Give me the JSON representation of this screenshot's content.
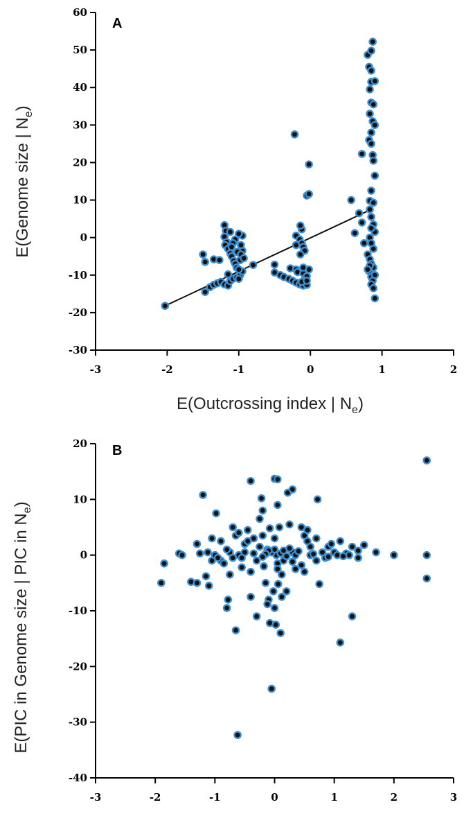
{
  "chart_data": [
    {
      "type": "scatter",
      "panel_label": "A",
      "xlabel_main": "E(Outcrossing index | N",
      "xlabel_sub": "e",
      "xlabel_end": ")",
      "ylabel_main": "E(Genome size | N",
      "ylabel_sub": "e",
      "ylabel_end": ")",
      "xlim": [
        -3,
        2
      ],
      "ylim": [
        -30,
        60
      ],
      "x_ticks": [
        "-3",
        "-2",
        "-1",
        "0",
        "1",
        "2"
      ],
      "y_ticks": [
        "60",
        "50",
        "40",
        "30",
        "20",
        "10",
        "0",
        "-10",
        "-20",
        "-30"
      ],
      "trendline": {
        "x": [
          -2.03,
          0.85
        ],
        "y": [
          -18.2,
          7.5
        ]
      },
      "series": [
        {
          "points": [
            [
              -2.03,
              -18.2
            ],
            [
              -1.47,
              -14.5
            ],
            [
              -1.47,
              -6.5
            ],
            [
              -1.5,
              -4.5
            ],
            [
              -1.4,
              -13.2
            ],
            [
              -1.35,
              -12.6
            ],
            [
              -1.3,
              -12.2
            ],
            [
              -1.25,
              -11.8
            ],
            [
              -1.2,
              -12.5
            ],
            [
              -1.15,
              -12.8
            ],
            [
              -1.12,
              -11.6
            ],
            [
              -1.08,
              -11.0
            ],
            [
              -1.03,
              -10.6
            ],
            [
              -0.98,
              -10.0
            ],
            [
              -0.95,
              -9.0
            ],
            [
              -1.35,
              -5.8
            ],
            [
              -1.27,
              -6.0
            ],
            [
              -1.2,
              3.3
            ],
            [
              -1.18,
              1.8
            ],
            [
              -1.2,
              0.2
            ],
            [
              -1.17,
              -1.2
            ],
            [
              -1.19,
              -2.0
            ],
            [
              -1.15,
              -3.0
            ],
            [
              -1.12,
              -4.2
            ],
            [
              -1.1,
              -5.0
            ],
            [
              -1.07,
              -6.2
            ],
            [
              -1.05,
              -7.0
            ],
            [
              -1.03,
              -8.0
            ],
            [
              -1.0,
              -8.5
            ],
            [
              -0.98,
              -6.0
            ],
            [
              -0.95,
              -3.5
            ],
            [
              -0.97,
              -2.0
            ],
            [
              -0.95,
              0.5
            ],
            [
              -1.0,
              1.0
            ],
            [
              -1.05,
              -0.5
            ],
            [
              -1.08,
              -1.5
            ],
            [
              -1.1,
              -2.5
            ],
            [
              -1.02,
              -3.8
            ],
            [
              -0.97,
              -4.5
            ],
            [
              -0.93,
              -5.5
            ],
            [
              -0.8,
              -7.3
            ],
            [
              -1.12,
              1.5
            ],
            [
              -1.15,
              -9.8
            ],
            [
              -1.0,
              -11.0
            ],
            [
              -0.5,
              -7.2
            ],
            [
              -0.5,
              -9.3
            ],
            [
              -0.42,
              -10.0
            ],
            [
              -0.37,
              -10.5
            ],
            [
              -0.3,
              -11.0
            ],
            [
              -0.25,
              -11.5
            ],
            [
              -0.2,
              -12.0
            ],
            [
              -0.15,
              -12.5
            ],
            [
              -0.1,
              -12.8
            ],
            [
              -0.05,
              -12.6
            ],
            [
              -0.08,
              -11.2
            ],
            [
              -0.12,
              -11.8
            ],
            [
              -0.28,
              -8.2
            ],
            [
              -0.2,
              -8.5
            ],
            [
              -0.18,
              -9.2
            ],
            [
              -0.1,
              -9.5
            ],
            [
              -0.05,
              -10.3
            ],
            [
              -0.02,
              -8.5
            ],
            [
              -0.1,
              -8.0
            ],
            [
              -0.05,
              -11.5
            ],
            [
              -0.22,
              27.5
            ],
            [
              -0.02,
              19.5
            ],
            [
              -0.05,
              11.2
            ],
            [
              -0.02,
              11.6
            ],
            [
              -0.2,
              0.5
            ],
            [
              -0.15,
              -0.5
            ],
            [
              -0.12,
              -1.5
            ],
            [
              -0.1,
              -2.5
            ],
            [
              -0.08,
              -3.5
            ],
            [
              -0.14,
              -4.5
            ],
            [
              -0.12,
              2.2
            ],
            [
              -0.14,
              3.2
            ],
            [
              -0.2,
              -2.0
            ],
            [
              0.57,
              10.0
            ],
            [
              0.62,
              1.2
            ],
            [
              0.72,
              22.3
            ],
            [
              0.68,
              6.5
            ],
            [
              0.72,
              4.0
            ],
            [
              0.75,
              -1.5
            ],
            [
              0.87,
              52.2
            ],
            [
              0.8,
              48.7
            ],
            [
              0.85,
              49.8
            ],
            [
              0.82,
              45.5
            ],
            [
              0.85,
              44.5
            ],
            [
              0.85,
              41.5
            ],
            [
              0.9,
              41.7
            ],
            [
              0.83,
              39.5
            ],
            [
              0.85,
              36.0
            ],
            [
              0.88,
              35.5
            ],
            [
              0.83,
              33.0
            ],
            [
              0.87,
              31.0
            ],
            [
              0.9,
              30.0
            ],
            [
              0.85,
              28.0
            ],
            [
              0.82,
              26.0
            ],
            [
              0.85,
              25.0
            ],
            [
              0.87,
              22.0
            ],
            [
              0.88,
              20.5
            ],
            [
              0.9,
              16.5
            ],
            [
              0.85,
              12.5
            ],
            [
              0.83,
              9.8
            ],
            [
              0.88,
              9.3
            ],
            [
              0.83,
              7.5
            ],
            [
              0.85,
              5.5
            ],
            [
              0.88,
              3.5
            ],
            [
              0.9,
              1.5
            ],
            [
              0.83,
              0.0
            ],
            [
              0.85,
              -1.5
            ],
            [
              0.88,
              -3.0
            ],
            [
              0.8,
              -4.5
            ],
            [
              0.83,
              -5.8
            ],
            [
              0.85,
              -7.0
            ],
            [
              0.88,
              -8.0
            ],
            [
              0.82,
              -9.0
            ],
            [
              0.85,
              -10.5
            ],
            [
              0.87,
              -11.5
            ],
            [
              0.85,
              -12.5
            ],
            [
              0.88,
              -13.5
            ],
            [
              0.9,
              -16.2
            ],
            [
              0.83,
              -7.5
            ],
            [
              0.8,
              -8.5
            ],
            [
              0.9,
              -10.0
            ],
            [
              0.85,
              2.5
            ]
          ]
        }
      ]
    },
    {
      "type": "scatter",
      "panel_label": "B",
      "ylabel_main": "E(PIC in Genome size | PIC in N",
      "ylabel_sub": "e",
      "ylabel_end": ")",
      "xlim": [
        -3,
        3
      ],
      "ylim": [
        -40,
        20
      ],
      "x_ticks": [
        "-3",
        "-2",
        "-1",
        "0",
        "1",
        "2",
        "3"
      ],
      "y_ticks": [
        "20",
        "10",
        "0",
        "-10",
        "-20",
        "-30",
        "-40"
      ],
      "series": [
        {
          "points": [
            [
              -1.9,
              -5.0
            ],
            [
              -1.85,
              -1.5
            ],
            [
              -1.6,
              0.3
            ],
            [
              -1.55,
              0.0
            ],
            [
              -1.4,
              -4.8
            ],
            [
              -1.3,
              -5.0
            ],
            [
              -1.25,
              0.3
            ],
            [
              -1.2,
              10.8
            ],
            [
              -1.15,
              -3.8
            ],
            [
              -1.12,
              0.5
            ],
            [
              -1.1,
              -5.5
            ],
            [
              -1.05,
              3.0
            ],
            [
              -1.0,
              0.0
            ],
            [
              -0.98,
              7.5
            ],
            [
              -0.9,
              -1.0
            ],
            [
              -0.85,
              -1.5
            ],
            [
              -0.8,
              -9.5
            ],
            [
              -0.78,
              -8.0
            ],
            [
              -0.75,
              0.5
            ],
            [
              -0.7,
              5.0
            ],
            [
              -0.65,
              3.5
            ],
            [
              -0.6,
              0.0
            ],
            [
              -0.65,
              -13.5
            ],
            [
              -0.62,
              -32.3
            ],
            [
              -0.55,
              -0.5
            ],
            [
              -0.5,
              2.0
            ],
            [
              -0.45,
              4.5
            ],
            [
              -0.4,
              13.3
            ],
            [
              -0.4,
              -7.5
            ],
            [
              -0.35,
              0.3
            ],
            [
              -0.3,
              -11.0
            ],
            [
              -0.25,
              6.5
            ],
            [
              -0.22,
              10.2
            ],
            [
              -0.2,
              3.5
            ],
            [
              -0.18,
              -2.0
            ],
            [
              -0.15,
              -5.0
            ],
            [
              -0.12,
              1.0
            ],
            [
              -0.1,
              -8.0
            ],
            [
              -0.08,
              -12.2
            ],
            [
              -0.05,
              0.5
            ],
            [
              -0.05,
              -24.0
            ],
            [
              -0.02,
              -6.5
            ],
            [
              0.0,
              -9.5
            ],
            [
              0.0,
              3.0
            ],
            [
              0.02,
              -12.5
            ],
            [
              0.03,
              0.0
            ],
            [
              0.05,
              -1.5
            ],
            [
              0.05,
              -2.5
            ],
            [
              0.08,
              5.0
            ],
            [
              0.1,
              -14.0
            ],
            [
              0.12,
              -3.5
            ],
            [
              0.15,
              -1.0
            ],
            [
              0.2,
              -6.5
            ],
            [
              0.22,
              11.2
            ],
            [
              0.3,
              11.8
            ],
            [
              0.3,
              0.5
            ],
            [
              0.35,
              0.0
            ],
            [
              0.45,
              5.0
            ],
            [
              0.5,
              -3.0
            ],
            [
              0.55,
              2.5
            ],
            [
              0.6,
              0.0
            ],
            [
              0.7,
              -1.0
            ],
            [
              0.72,
              10.0
            ],
            [
              0.75,
              -5.2
            ],
            [
              0.8,
              0.5
            ],
            [
              0.85,
              -0.5
            ],
            [
              0.9,
              1.5
            ],
            [
              1.0,
              0.5
            ],
            [
              1.05,
              0.0
            ],
            [
              1.1,
              -15.7
            ],
            [
              1.1,
              2.5
            ],
            [
              1.2,
              0.3
            ],
            [
              1.25,
              0.0
            ],
            [
              1.3,
              -11.0
            ],
            [
              1.3,
              1.5
            ],
            [
              1.4,
              -0.5
            ],
            [
              1.5,
              1.8
            ],
            [
              1.7,
              0.5
            ],
            [
              2.0,
              0.0
            ],
            [
              2.55,
              17.0
            ],
            [
              2.55,
              0.0
            ],
            [
              2.55,
              -4.2
            ],
            [
              0.0,
              13.7
            ],
            [
              0.05,
              13.6
            ],
            [
              -0.05,
              0.5
            ],
            [
              0.0,
              1.0
            ],
            [
              0.1,
              0.3
            ],
            [
              0.15,
              0.8
            ],
            [
              -0.1,
              0.8
            ],
            [
              -0.15,
              0.2
            ],
            [
              0.2,
              -0.2
            ],
            [
              -0.2,
              -0.3
            ],
            [
              0.25,
              1.2
            ],
            [
              -0.25,
              1.5
            ],
            [
              -0.3,
              -1.0
            ],
            [
              0.3,
              -1.2
            ],
            [
              -0.5,
              0.5
            ],
            [
              0.4,
              0.7
            ],
            [
              -0.7,
              -0.5
            ],
            [
              0.6,
              1.5
            ],
            [
              -0.8,
              1.0
            ],
            [
              0.9,
              -0.3
            ],
            [
              -0.95,
              -0.5
            ],
            [
              1.15,
              -0.2
            ],
            [
              -1.3,
              2.0
            ],
            [
              1.4,
              0.8
            ],
            [
              -0.08,
              4.8
            ],
            [
              0.06,
              -5.2
            ],
            [
              0.12,
              -7.5
            ],
            [
              -0.12,
              -8.8
            ],
            [
              0.35,
              -2.5
            ],
            [
              -0.35,
              3.0
            ],
            [
              0.5,
              3.5
            ],
            [
              -0.6,
              4.0
            ],
            [
              0.7,
              3.0
            ],
            [
              -0.9,
              2.5
            ],
            [
              0.95,
              2.0
            ],
            [
              -1.05,
              -1.0
            ],
            [
              0.25,
              5.5
            ],
            [
              -0.4,
              -3.0
            ],
            [
              0.45,
              -1.8
            ],
            [
              -0.55,
              -2.2
            ],
            [
              0.65,
              0.2
            ],
            [
              -0.75,
              -3.5
            ],
            [
              0.55,
              4.5
            ],
            [
              -0.2,
              8.0
            ],
            [
              0.05,
              9.0
            ],
            [
              -0.45,
              2.5
            ]
          ]
        }
      ]
    }
  ]
}
